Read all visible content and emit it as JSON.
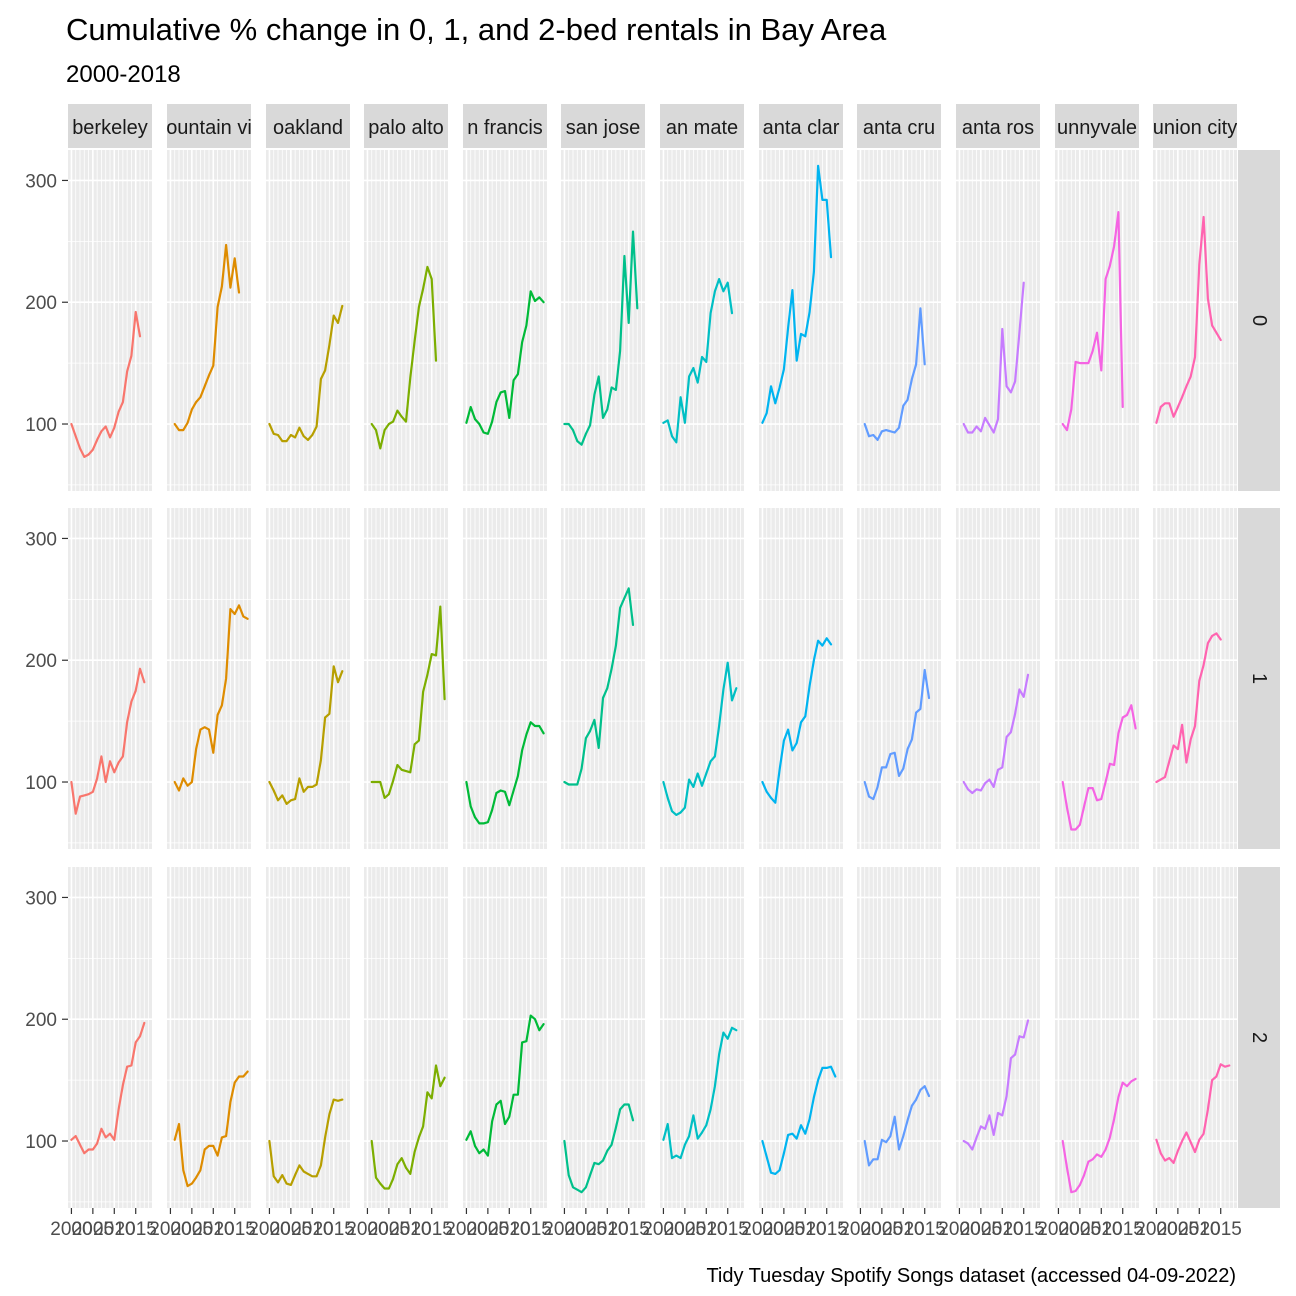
{
  "chart_data": {
    "type": "line",
    "title": "Cumulative % change in 0, 1, and 2-bed rentals in Bay Area",
    "subtitle": "2000-2018",
    "caption": "Tidy Tuesday Spotify Songs dataset (accessed 04-09-2022)",
    "xlabel": "",
    "ylabel": "",
    "xlim": [
      1999.2,
      2018.8
    ],
    "ylim": [
      45,
      325
    ],
    "x_ticks": [
      2000,
      2005,
      2010,
      2015
    ],
    "y_ticks": [
      100,
      200,
      300
    ],
    "grid": true,
    "legend": "none",
    "facet_columns": [
      "berkeley",
      "mountain view",
      "oakland",
      "palo alto",
      "san francisco",
      "san jose",
      "san mateo",
      "santa clara",
      "santa cruz",
      "santa rosa",
      "sunnyvale",
      "union city"
    ],
    "column_strip_labels": [
      "berkeley",
      "ountain vi",
      "oakland",
      "palo alto",
      "n francis",
      "san jose",
      "an mate",
      "anta clar",
      "anta cru",
      "anta ros",
      "unnyvale",
      "union city"
    ],
    "facet_rows": [
      "0",
      "1",
      "2"
    ],
    "colors": [
      "#F8766D",
      "#DE8C00",
      "#B79F00",
      "#7CAE00",
      "#00BA38",
      "#00C08B",
      "#00BFC4",
      "#00B4F0",
      "#619CFF",
      "#C77CFF",
      "#F564E3",
      "#FF64B0"
    ],
    "x": [
      2000,
      2001,
      2002,
      2003,
      2004,
      2005,
      2006,
      2007,
      2008,
      2009,
      2010,
      2011,
      2012,
      2013,
      2014,
      2015,
      2016,
      2017,
      2018
    ],
    "panels": [
      {
        "row": "0",
        "city": "berkeley",
        "values": [
          100,
          90,
          80,
          73,
          75,
          79,
          87,
          94,
          98,
          89,
          97,
          110,
          118,
          143,
          156,
          192,
          172,
          null,
          null
        ]
      },
      {
        "row": "0",
        "city": "mountain view",
        "values": [
          null,
          100,
          95,
          95,
          101,
          112,
          118,
          122,
          131,
          140,
          148,
          196,
          213,
          247,
          212,
          236,
          208,
          null,
          null
        ]
      },
      {
        "row": "0",
        "city": "oakland",
        "values": [
          100,
          92,
          91,
          86,
          86,
          91,
          89,
          97,
          90,
          87,
          91,
          98,
          137,
          144,
          165,
          189,
          183,
          197,
          null
        ]
      },
      {
        "row": "0",
        "city": "palo alto",
        "values": [
          null,
          100,
          95,
          80,
          95,
          100,
          102,
          111,
          106,
          102,
          138,
          168,
          196,
          211,
          229,
          219,
          152,
          null,
          null
        ]
      },
      {
        "row": "0",
        "city": "san francisco",
        "values": [
          101,
          114,
          104,
          100,
          93,
          92,
          102,
          118,
          126,
          127,
          105,
          136,
          141,
          167,
          181,
          209,
          201,
          204,
          200
        ]
      },
      {
        "row": "0",
        "city": "san jose",
        "values": [
          100,
          100,
          95,
          86,
          83,
          92,
          99,
          124,
          139,
          105,
          112,
          130,
          128,
          160,
          238,
          183,
          258,
          195,
          null
        ]
      },
      {
        "row": "0",
        "city": "san mateo",
        "values": [
          101,
          103,
          90,
          85,
          122,
          101,
          139,
          146,
          134,
          155,
          151,
          191,
          209,
          219,
          209,
          216,
          191,
          null,
          null
        ]
      },
      {
        "row": "0",
        "city": "santa clara",
        "values": [
          101,
          109,
          131,
          117,
          130,
          145,
          179,
          210,
          152,
          174,
          172,
          192,
          225,
          312,
          284,
          284,
          237,
          null,
          null
        ]
      },
      {
        "row": "0",
        "city": "santa cruz",
        "values": [
          null,
          100,
          90,
          91,
          87,
          94,
          95,
          94,
          93,
          97,
          115,
          120,
          137,
          149,
          195,
          149,
          null,
          null,
          null
        ]
      },
      {
        "row": "0",
        "city": "santa rosa",
        "values": [
          null,
          100,
          93,
          93,
          98,
          94,
          105,
          99,
          93,
          104,
          178,
          131,
          126,
          135,
          175,
          216,
          null,
          null,
          null
        ]
      },
      {
        "row": "0",
        "city": "sunnyvale",
        "values": [
          null,
          100,
          95,
          112,
          151,
          150,
          150,
          150,
          160,
          175,
          144,
          219,
          230,
          246,
          274,
          114,
          null,
          null,
          null
        ]
      },
      {
        "row": "0",
        "city": "union city",
        "values": [
          101,
          114,
          117,
          117,
          106,
          114,
          122,
          131,
          139,
          155,
          231,
          270,
          203,
          181,
          175,
          169,
          null,
          null,
          null
        ]
      },
      {
        "row": "1",
        "city": "berkeley",
        "values": [
          100,
          74,
          88,
          89,
          90,
          92,
          103,
          121,
          100,
          117,
          108,
          116,
          121,
          149,
          166,
          175,
          193,
          182,
          null
        ]
      },
      {
        "row": "1",
        "city": "mountain view",
        "values": [
          null,
          100,
          93,
          103,
          97,
          100,
          127,
          143,
          145,
          143,
          124,
          155,
          163,
          185,
          242,
          238,
          245,
          236,
          234
        ]
      },
      {
        "row": "1",
        "city": "oakland",
        "values": [
          100,
          93,
          85,
          89,
          82,
          85,
          86,
          103,
          92,
          96,
          96,
          98,
          118,
          153,
          156,
          195,
          182,
          191,
          null
        ]
      },
      {
        "row": "1",
        "city": "palo alto",
        "values": [
          null,
          100,
          100,
          100,
          87,
          90,
          101,
          114,
          110,
          109,
          108,
          131,
          134,
          174,
          188,
          205,
          204,
          244,
          168
        ]
      },
      {
        "row": "1",
        "city": "san francisco",
        "values": [
          100,
          80,
          71,
          66,
          66,
          67,
          77,
          91,
          93,
          92,
          81,
          93,
          105,
          126,
          139,
          149,
          146,
          146,
          140
        ]
      },
      {
        "row": "1",
        "city": "san jose",
        "values": [
          100,
          98,
          98,
          98,
          111,
          136,
          142,
          151,
          128,
          169,
          177,
          193,
          212,
          243,
          251,
          259,
          229,
          null,
          null
        ]
      },
      {
        "row": "1",
        "city": "san mateo",
        "values": [
          100,
          87,
          76,
          73,
          75,
          79,
          102,
          96,
          107,
          97,
          107,
          117,
          121,
          146,
          176,
          198,
          167,
          177,
          null
        ]
      },
      {
        "row": "1",
        "city": "santa clara",
        "values": [
          100,
          92,
          87,
          83,
          110,
          134,
          143,
          126,
          132,
          149,
          154,
          179,
          200,
          216,
          212,
          218,
          213,
          null,
          null
        ]
      },
      {
        "row": "1",
        "city": "santa cruz",
        "values": [
          null,
          100,
          88,
          86,
          96,
          112,
          112,
          123,
          124,
          105,
          111,
          127,
          135,
          157,
          160,
          192,
          169,
          null,
          null
        ]
      },
      {
        "row": "1",
        "city": "santa rosa",
        "values": [
          null,
          100,
          94,
          91,
          94,
          93,
          99,
          102,
          96,
          110,
          112,
          137,
          141,
          156,
          176,
          170,
          188,
          null,
          null
        ]
      },
      {
        "row": "1",
        "city": "sunnyvale",
        "values": [
          null,
          100,
          79,
          61,
          61,
          65,
          80,
          95,
          95,
          85,
          86,
          100,
          115,
          114,
          140,
          153,
          155,
          163,
          144
        ]
      },
      {
        "row": "1",
        "city": "union city",
        "values": [
          100,
          102,
          104,
          117,
          130,
          127,
          147,
          116,
          135,
          146,
          183,
          196,
          214,
          220,
          222,
          217,
          null,
          null,
          null
        ]
      },
      {
        "row": "2",
        "city": "berkeley",
        "values": [
          101,
          104,
          97,
          90,
          93,
          93,
          98,
          110,
          103,
          106,
          101,
          126,
          146,
          161,
          162,
          181,
          186,
          197,
          null
        ]
      },
      {
        "row": "2",
        "city": "mountain view",
        "values": [
          null,
          101,
          114,
          76,
          63,
          65,
          70,
          76,
          93,
          96,
          96,
          88,
          103,
          104,
          132,
          148,
          153,
          153,
          157
        ]
      },
      {
        "row": "2",
        "city": "oakland",
        "values": [
          100,
          71,
          66,
          72,
          65,
          64,
          72,
          80,
          75,
          73,
          71,
          71,
          80,
          103,
          122,
          134,
          133,
          134,
          null
        ]
      },
      {
        "row": "2",
        "city": "palo alto",
        "values": [
          null,
          100,
          70,
          65,
          61,
          61,
          69,
          81,
          86,
          78,
          73,
          91,
          103,
          112,
          140,
          135,
          162,
          145,
          152
        ]
      },
      {
        "row": "2",
        "city": "san francisco",
        "values": [
          101,
          108,
          96,
          90,
          93,
          88,
          116,
          130,
          133,
          114,
          120,
          138,
          138,
          181,
          182,
          203,
          200,
          191,
          196
        ]
      },
      {
        "row": "2",
        "city": "san jose",
        "values": [
          100,
          72,
          62,
          60,
          58,
          62,
          72,
          82,
          81,
          84,
          92,
          97,
          111,
          126,
          130,
          130,
          117,
          null,
          null
        ]
      },
      {
        "row": "2",
        "city": "san mateo",
        "values": [
          101,
          114,
          86,
          88,
          86,
          97,
          104,
          121,
          102,
          107,
          113,
          126,
          145,
          171,
          189,
          184,
          193,
          191,
          null
        ]
      },
      {
        "row": "2",
        "city": "santa clara",
        "values": [
          100,
          87,
          74,
          73,
          76,
          90,
          105,
          106,
          102,
          113,
          106,
          118,
          136,
          150,
          160,
          160,
          161,
          153,
          null
        ]
      },
      {
        "row": "2",
        "city": "santa cruz",
        "values": [
          null,
          100,
          80,
          85,
          85,
          101,
          99,
          104,
          120,
          93,
          104,
          117,
          129,
          134,
          142,
          145,
          137,
          null,
          null
        ]
      },
      {
        "row": "2",
        "city": "santa rosa",
        "values": [
          null,
          100,
          98,
          93,
          103,
          112,
          110,
          121,
          105,
          123,
          121,
          137,
          168,
          171,
          186,
          185,
          199,
          null,
          null
        ]
      },
      {
        "row": "2",
        "city": "sunnyvale",
        "values": [
          null,
          100,
          78,
          58,
          59,
          64,
          72,
          83,
          85,
          89,
          87,
          93,
          103,
          118,
          136,
          148,
          145,
          149,
          151
        ]
      },
      {
        "row": "2",
        "city": "union city",
        "values": [
          101,
          90,
          84,
          86,
          82,
          92,
          100,
          107,
          99,
          91,
          101,
          106,
          126,
          150,
          153,
          163,
          161,
          162,
          null
        ]
      }
    ]
  }
}
